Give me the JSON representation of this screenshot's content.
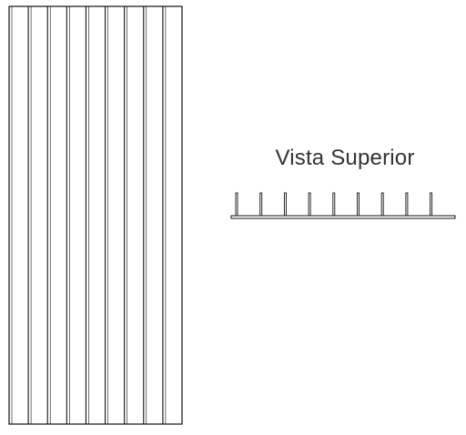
{
  "top_view": {
    "title": "Vista Superior"
  },
  "panel": {
    "slat_count": 9
  },
  "colors": {
    "line": "#111111",
    "text": "#333333",
    "background": "#ffffff"
  }
}
